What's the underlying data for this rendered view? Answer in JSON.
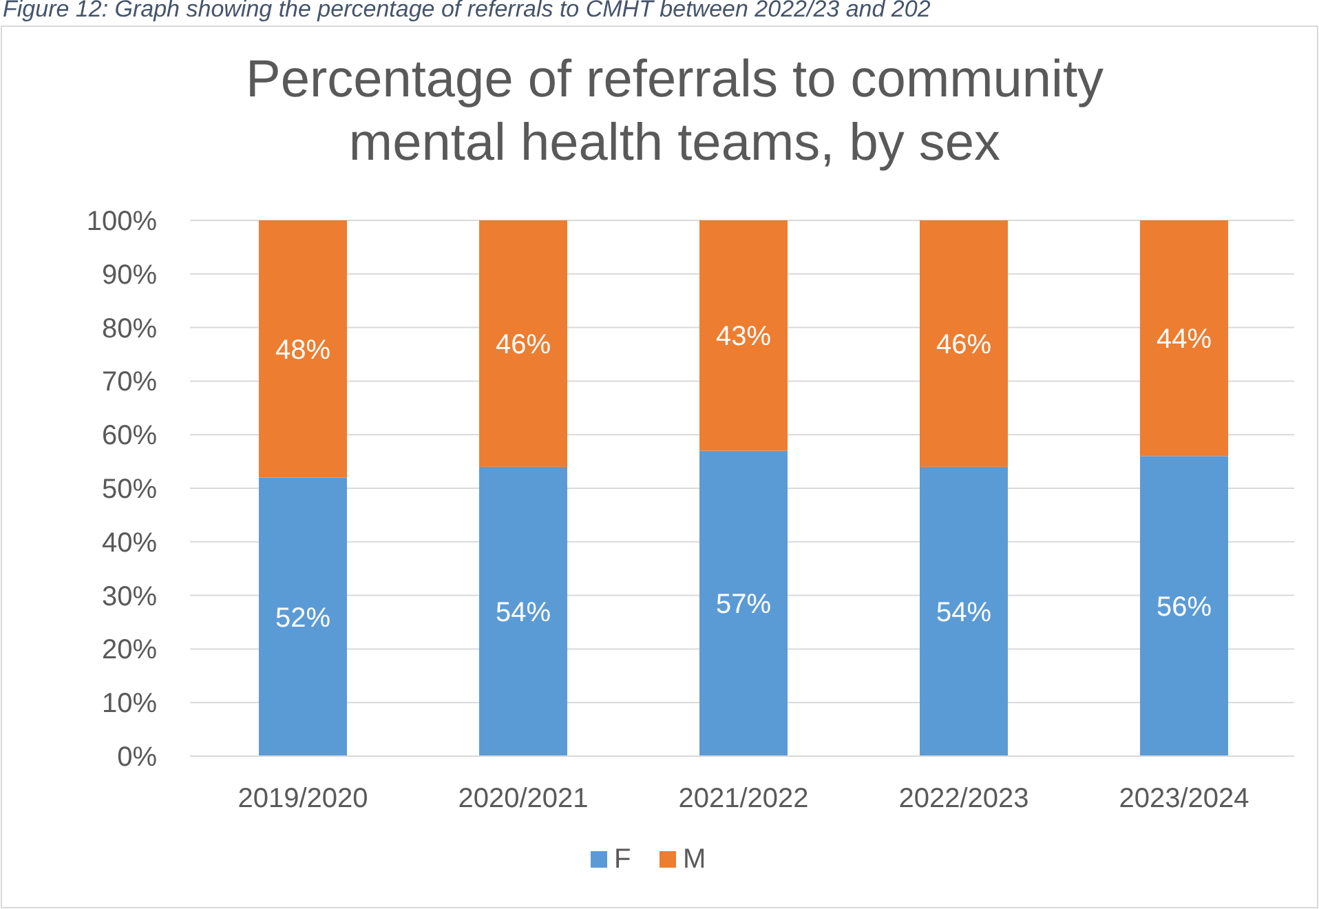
{
  "chart_data": {
    "type": "bar",
    "title": "Percentage of referrals to community mental health teams, by sex",
    "annotations": [
      "Figure 12: Graph showing the percentage of referrals to CMHT between 2022/23 and 202"
    ],
    "categories": [
      "2019/2020",
      "2020/2021",
      "2021/2022",
      "2022/2023",
      "2023/2024"
    ],
    "series": [
      {
        "name": "F",
        "color": "#5b9bd5",
        "values": [
          52,
          54,
          57,
          54,
          56
        ],
        "value_labels": [
          "52%",
          "54%",
          "57%",
          "54%",
          "56%"
        ]
      },
      {
        "name": "M",
        "color": "#ed7d31",
        "values": [
          48,
          46,
          43,
          46,
          44
        ],
        "value_labels": [
          "48%",
          "46%",
          "43%",
          "46%",
          "44%"
        ]
      }
    ],
    "stacked": true,
    "ylim": [
      0,
      100
    ],
    "yticks": [
      {
        "value": 0,
        "label": "0%"
      },
      {
        "value": 10,
        "label": "10%"
      },
      {
        "value": 20,
        "label": "20%"
      },
      {
        "value": 30,
        "label": "30%"
      },
      {
        "value": 40,
        "label": "40%"
      },
      {
        "value": 50,
        "label": "50%"
      },
      {
        "value": 60,
        "label": "60%"
      },
      {
        "value": 70,
        "label": "70%"
      },
      {
        "value": 80,
        "label": "80%"
      },
      {
        "value": 90,
        "label": "90%"
      },
      {
        "value": 100,
        "label": "100%"
      }
    ],
    "grid": "y",
    "legend": "bottom"
  }
}
